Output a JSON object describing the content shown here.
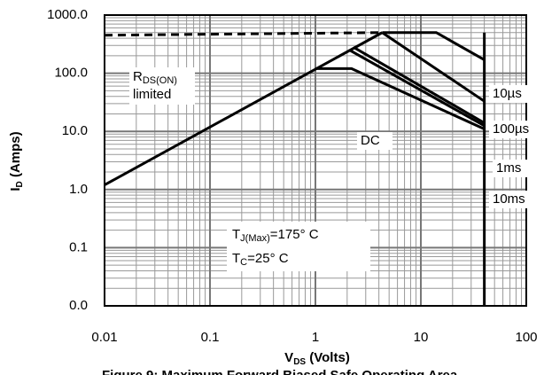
{
  "chart_data": {
    "type": "line",
    "log_x": true,
    "log_y": true,
    "grid": true,
    "minor_grid": true,
    "xlabel": {
      "main": "V",
      "sub": "DS",
      "rest": " (Volts)"
    },
    "ylabel": {
      "main": "I",
      "sub": "D",
      "rest": " (Amps)"
    },
    "caption": "Figure 9: Maximum Forward Biased Safe Operating Area",
    "xlim": [
      0.01,
      100
    ],
    "ylim": [
      0.01,
      1000
    ],
    "xticks": [
      0.01,
      0.1,
      1,
      10,
      100
    ],
    "yticks": [
      {
        "value": 0.01,
        "label": "0.0"
      },
      {
        "value": 0.1,
        "label": "0.1"
      },
      {
        "value": 1,
        "label": "1.0"
      },
      {
        "value": 10,
        "label": "10.0"
      },
      {
        "value": 100,
        "label": "100.0"
      },
      {
        "value": 1000,
        "label": "1000.0"
      }
    ],
    "color": "#000000",
    "series": [
      {
        "name": "10µs",
        "x": [
          4.3,
          14,
          40
        ],
        "values": [
          500,
          500,
          170
        ]
      },
      {
        "name": "100µs",
        "x": [
          4.3,
          40
        ],
        "values": [
          500,
          33
        ]
      },
      {
        "name": "1ms",
        "x": [
          2.3,
          40
        ],
        "values": [
          280,
          14
        ]
      },
      {
        "name": "10ms",
        "x": [
          2.1,
          40
        ],
        "values": [
          250,
          12.5
        ]
      },
      {
        "name": "DC",
        "x": [
          1,
          2.2,
          40
        ],
        "values": [
          120,
          120,
          11
        ]
      }
    ],
    "limit_lines": [
      {
        "x": [
          0.01,
          4.3
        ],
        "values": [
          1.2,
          500
        ],
        "dashed": false
      },
      {
        "x": [
          0.01,
          4.3
        ],
        "values": [
          450,
          500
        ],
        "dashed": true
      },
      {
        "x": [
          40,
          40
        ],
        "values": [
          500,
          0.01
        ],
        "dashed": false
      }
    ],
    "annotations": {
      "rds": {
        "main": "R",
        "sub": "DS(ON)",
        "line2": "limited"
      },
      "tj": {
        "main": "T",
        "sub": "J(Max)",
        "rest": "=175° C"
      },
      "tc": {
        "main": "T",
        "sub": "C",
        "rest": "=25° C"
      }
    }
  }
}
